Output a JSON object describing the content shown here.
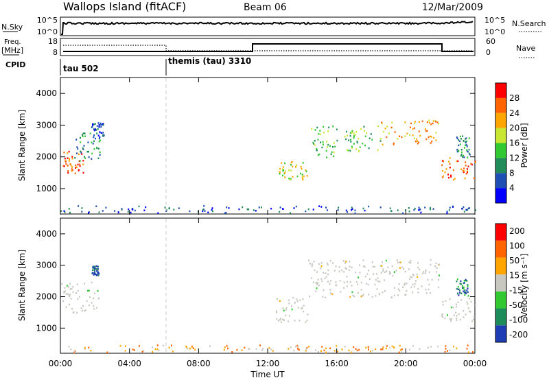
{
  "header": {
    "station": "Wallops Island (fitACF)",
    "beam": "Beam 06",
    "date": "12/Mar/2009"
  },
  "time_axis": {
    "label": "Time UT",
    "ticks": [
      "00:00",
      "04:00",
      "08:00",
      "12:00",
      "16:00",
      "20:00",
      "00:00"
    ],
    "tick_hours": [
      0,
      4,
      8,
      12,
      16,
      20,
      24
    ],
    "range_hours": [
      0,
      24
    ]
  },
  "nsky_panel": {
    "left_label": "N.Sky",
    "right_label": "N.Search",
    "ticks_left": [
      "10^5",
      "10^0"
    ],
    "ticks_right": [
      "10^5",
      "10^0"
    ]
  },
  "freq_panel": {
    "left_label_1": "Freq.",
    "left_label_2": "[MHz]",
    "ticks_left": [
      "18",
      "8"
    ],
    "right_label": "Nave",
    "ticks_right": [
      "60",
      "0"
    ]
  },
  "cpid_panel": {
    "label": "CPID",
    "segments": [
      {
        "name": "tau 502",
        "start_hour": 0
      },
      {
        "name": "themis (tau) 3310",
        "start_hour": 6
      }
    ]
  },
  "colors": {
    "power": [
      "#0000ff",
      "#1e50b4",
      "#228b5a",
      "#32c832",
      "#c8e632",
      "#ffa500",
      "#ff6400",
      "#ff0000"
    ],
    "velocity": [
      "#1e3cb4",
      "#1e8c5a",
      "#32c832",
      "#c8c8c0",
      "#ffa500",
      "#ff6400",
      "#ff0000"
    ],
    "ground_scatter": "#c8c8c0"
  },
  "chart_data": [
    {
      "type": "heatmap",
      "panel": "power",
      "ylabel": "Slant Range [km]",
      "yticks": [
        1000,
        2000,
        3000,
        4000
      ],
      "ylim": [
        200,
        4500
      ],
      "colorbar_label": "Power [dB]",
      "colorbar_ticks": [
        "4",
        "8",
        "12",
        "16",
        "20",
        "24",
        "28"
      ],
      "regions": [
        {
          "t0": 0.1,
          "t1": 1.3,
          "r0": 1500,
          "r1": 2200,
          "level": 6
        },
        {
          "t0": 0.8,
          "t1": 2.3,
          "r0": 1900,
          "r1": 2800,
          "level": 2
        },
        {
          "t0": 1.7,
          "t1": 2.5,
          "r0": 2600,
          "r1": 3100,
          "level": 1
        },
        {
          "t0": 12.6,
          "t1": 14.3,
          "r0": 1300,
          "r1": 1900,
          "level": 4
        },
        {
          "t0": 14.5,
          "t1": 16.0,
          "r0": 2000,
          "r1": 3000,
          "level": 3
        },
        {
          "t0": 16.0,
          "t1": 18.5,
          "r0": 2200,
          "r1": 3000,
          "level": 3
        },
        {
          "t0": 18.5,
          "t1": 21.9,
          "r0": 2400,
          "r1": 3200,
          "level": 5
        },
        {
          "t0": 22.0,
          "t1": 24.0,
          "r0": 1300,
          "r1": 2000,
          "level": 6
        },
        {
          "t0": 22.9,
          "t1": 23.7,
          "r0": 2000,
          "r1": 2700,
          "level": 2
        },
        {
          "t0": 0.0,
          "t1": 24.0,
          "r0": 250,
          "r1": 480,
          "level": 1
        }
      ]
    },
    {
      "type": "heatmap",
      "panel": "velocity",
      "ylabel": "Slant Range [km]",
      "yticks": [
        1000,
        2000,
        3000,
        4000
      ],
      "ylim": [
        200,
        4500
      ],
      "colorbar_label": "Velocity [m s⁻¹]",
      "colorbar_ticks": [
        "200",
        "100",
        "50",
        "15",
        "-15",
        "-50",
        "-100",
        "-200"
      ],
      "regions": [
        {
          "t0": 0.0,
          "t1": 2.3,
          "r0": 1500,
          "r1": 2500,
          "level": 3
        },
        {
          "t0": 1.8,
          "t1": 2.2,
          "r0": 2700,
          "r1": 3000,
          "level": 0
        },
        {
          "t0": 12.4,
          "t1": 14.3,
          "r0": 1200,
          "r1": 2000,
          "level": 3
        },
        {
          "t0": 14.3,
          "t1": 21.9,
          "r0": 2000,
          "r1": 3200,
          "level": 3
        },
        {
          "t0": 22.0,
          "t1": 24.0,
          "r0": 1200,
          "r1": 2000,
          "level": 3
        },
        {
          "t0": 22.9,
          "t1": 23.6,
          "r0": 2000,
          "r1": 2600,
          "level": 1
        },
        {
          "t0": 0.0,
          "t1": 24.0,
          "r0": 250,
          "r1": 480,
          "level": 4
        }
      ]
    }
  ]
}
